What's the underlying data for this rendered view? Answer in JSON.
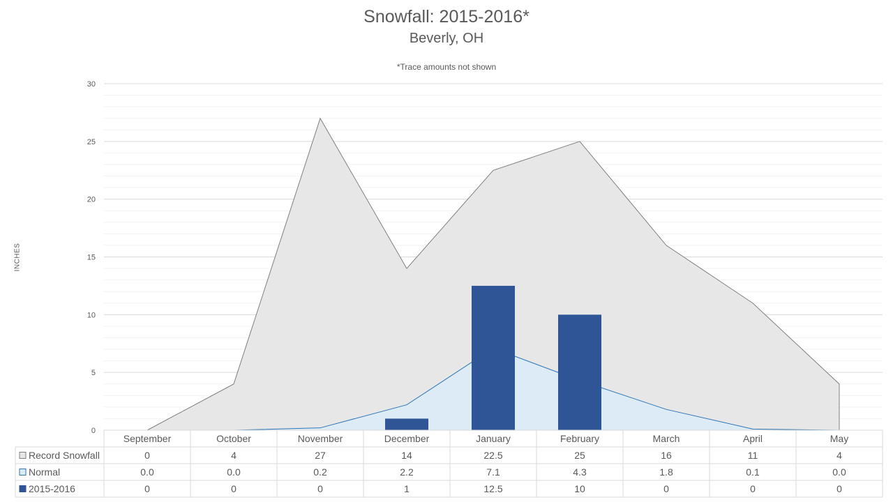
{
  "chart_data": {
    "type": "bar",
    "title": "Snowfall: 2015-2016*",
    "subtitle": "Beverly, OH",
    "note": "*Trace amounts not shown",
    "ylabel": "INCHES",
    "ylim": [
      0,
      30
    ],
    "yticks": [
      "0",
      "5",
      "10",
      "15",
      "20",
      "25",
      "30"
    ],
    "categories": [
      "September",
      "October",
      "November",
      "December",
      "January",
      "February",
      "March",
      "April",
      "May"
    ],
    "series": [
      {
        "name": "Record Snowfall",
        "kind": "area",
        "color": "#e7e7e7",
        "line_color": "#7f7f7f",
        "values": [
          0,
          4,
          27,
          14,
          22.5,
          25,
          16,
          11,
          4
        ],
        "labels": [
          "0",
          "4",
          "27",
          "14",
          "22.5",
          "25",
          "16",
          "11",
          "4"
        ]
      },
      {
        "name": "Normal",
        "kind": "area",
        "color": "#ddebf7",
        "line_color": "#2e75b6",
        "values": [
          0.0,
          0.0,
          0.2,
          2.2,
          7.1,
          4.3,
          1.8,
          0.1,
          0.0
        ],
        "labels": [
          "0.0",
          "0.0",
          "0.2",
          "2.2",
          "7.1",
          "4.3",
          "1.8",
          "0.1",
          "0.0"
        ]
      },
      {
        "name": "2015-2016",
        "kind": "bar",
        "color": "#2f5597",
        "values": [
          0,
          0,
          0,
          1,
          12.5,
          10,
          0,
          0,
          0
        ],
        "labels": [
          "0",
          "0",
          "0",
          "1",
          "12.5",
          "10",
          "0",
          "0",
          "0"
        ]
      }
    ],
    "grid": true,
    "legend": "data-table"
  }
}
